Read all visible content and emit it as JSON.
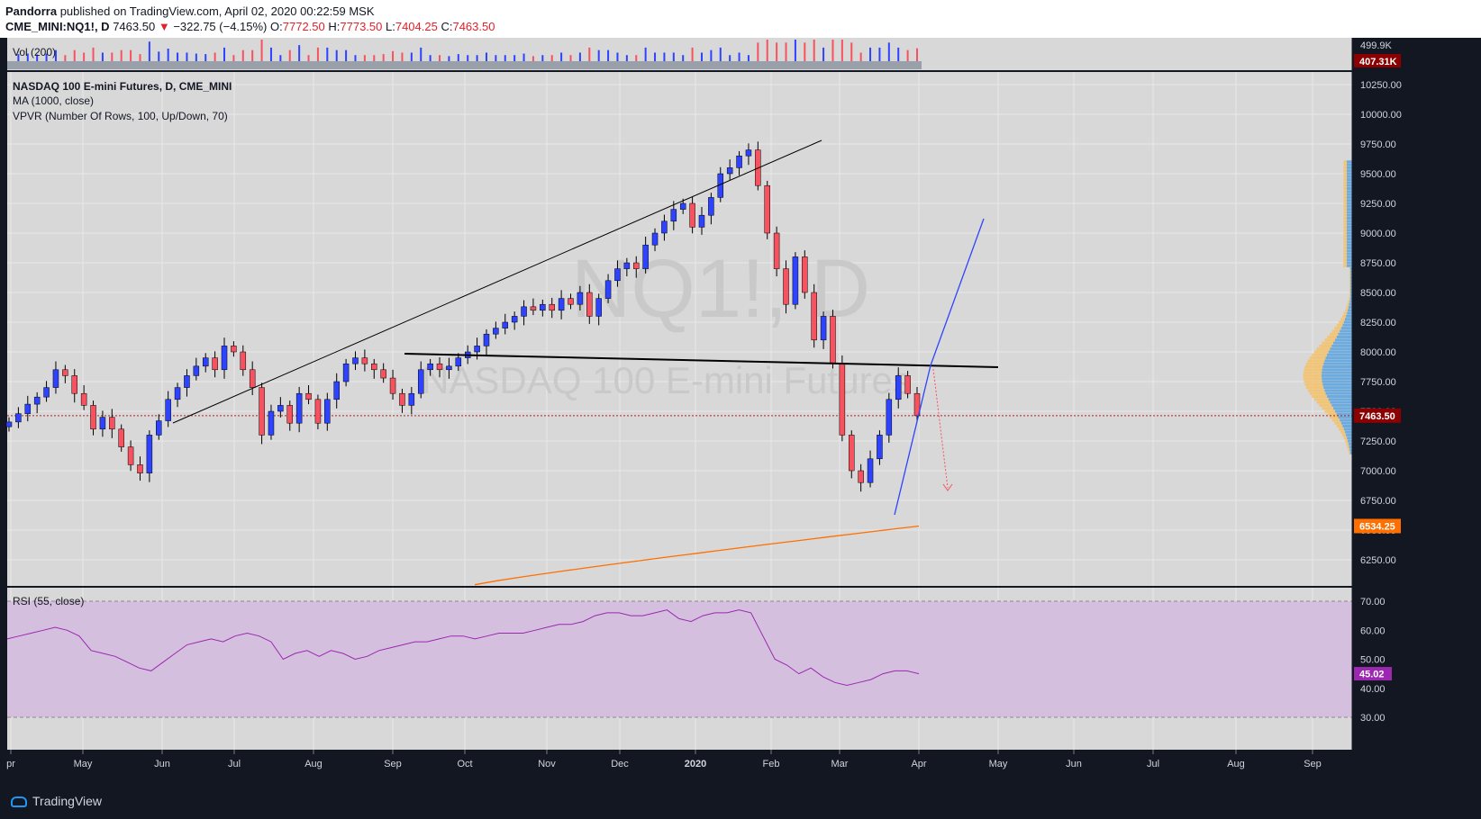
{
  "header": {
    "author": "Pandorra",
    "published": "published on TradingView.com, April 02, 2020 00:22:59 MSK",
    "symbol": "CME_MINI:NQ1!, D",
    "last": "7463.50",
    "arrow": "▼",
    "change": "−322.75 (−4.15%)",
    "o_label": "O:",
    "o_value": "7772.50",
    "h_label": "H:",
    "h_value": "7773.50",
    "l_label": "L:",
    "l_value": "7404.25",
    "c_label": "C:",
    "c_value": "7463.50"
  },
  "footer": {
    "brand": "TradingView"
  },
  "colors": {
    "up": "#2e43ff",
    "down": "#f7525f",
    "ma": "#ff6f00",
    "rsi": "#9c27b0",
    "price_tag": "#8b0000"
  },
  "chart_data": {
    "type": "candlestick",
    "title": "NASDAQ 100 E-mini Futures, D, CME_MINI",
    "watermark": "NQ1!, D",
    "watermark_sub": "NASDAQ 100 E-mini Futures",
    "indicators": [
      "MA (1000, close)",
      "VPVR (Number Of Rows, 100, Up/Down, 70)"
    ],
    "x_ticks": [
      "pr",
      "May",
      "Jun",
      "Jul",
      "Aug",
      "Sep",
      "Oct",
      "Nov",
      "Dec",
      "2020",
      "Feb",
      "Mar",
      "Apr",
      "May",
      "Jun",
      "Jul",
      "Aug",
      "Sep"
    ],
    "y_ticks": [
      "10250.00",
      "10000.00",
      "9750.00",
      "9500.00",
      "9250.00",
      "9000.00",
      "8750.00",
      "8500.00",
      "8250.00",
      "8000.00",
      "7750.00",
      "7500.00",
      "7250.00",
      "7000.00",
      "6750.00",
      "6500.00",
      "6250.00"
    ],
    "ylim": [
      6030,
      10330
    ],
    "last_price": 7463.5,
    "last_price_label": "7463.50",
    "ma_value": 6534.25,
    "ma_label": "6534.25",
    "close_series": [
      7410,
      7480,
      7560,
      7620,
      7700,
      7850,
      7800,
      7650,
      7550,
      7350,
      7450,
      7350,
      7200,
      7050,
      6980,
      7300,
      7420,
      7600,
      7700,
      7800,
      7880,
      7950,
      7850,
      8050,
      8000,
      7850,
      7700,
      7300,
      7500,
      7550,
      7400,
      7650,
      7600,
      7400,
      7600,
      7750,
      7900,
      7950,
      7900,
      7850,
      7780,
      7650,
      7550,
      7650,
      7850,
      7900,
      7850,
      7880,
      7950,
      8000,
      8050,
      8150,
      8200,
      8250,
      8300,
      8380,
      8350,
      8400,
      8350,
      8450,
      8400,
      8500,
      8300,
      8450,
      8600,
      8700,
      8750,
      8700,
      8900,
      9000,
      9100,
      9200,
      9250,
      9050,
      9150,
      9300,
      9500,
      9550,
      9650,
      9700,
      9400,
      9000,
      8700,
      8400,
      8800,
      8500,
      8100,
      8300,
      7900,
      7300,
      7000,
      6900,
      7100,
      7300,
      7600,
      7800,
      7650,
      7463
    ],
    "vol_panel": {
      "label": "Vol (200)",
      "axis_label": "499.9K",
      "last_label": "407.31K"
    },
    "rsi_panel": {
      "label": "RSI (55, close)",
      "y_ticks": [
        "70.00",
        "60.00",
        "50.00",
        "40.00",
        "30.00"
      ],
      "ylim": [
        27.5,
        71.5
      ],
      "last": 45.02,
      "last_label": "45.02",
      "series": [
        57,
        58,
        59,
        60,
        61,
        60,
        58,
        53,
        52,
        51,
        49,
        47,
        46,
        49,
        52,
        55,
        56,
        57,
        56,
        58,
        59,
        58,
        56,
        50,
        52,
        53,
        51,
        53,
        52,
        50,
        51,
        53,
        54,
        55,
        56,
        56,
        57,
        58,
        58,
        57,
        58,
        59,
        59,
        59,
        60,
        61,
        62,
        62,
        63,
        65,
        66,
        66,
        65,
        65,
        66,
        67,
        64,
        63,
        65,
        66,
        66,
        67,
        66,
        58,
        50,
        48,
        45,
        47,
        44,
        42,
        41,
        42,
        43,
        45,
        46,
        46,
        45
      ]
    }
  }
}
